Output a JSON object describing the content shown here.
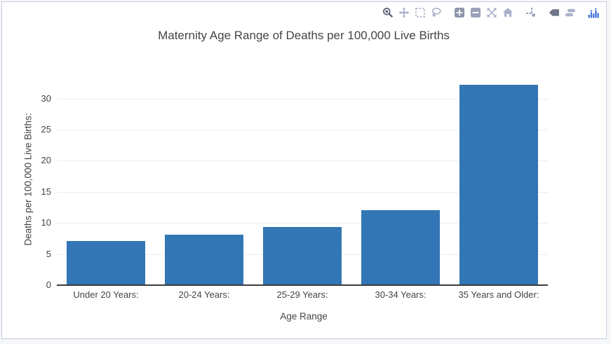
{
  "window": {
    "page_background": "#f6f7f8",
    "card_border_color": "#c6cbdd",
    "card_background": "#ffffff"
  },
  "modebar": {
    "icons": [
      {
        "id": "zoom",
        "state": "active"
      },
      {
        "id": "pan",
        "state": "inactive"
      },
      {
        "id": "box-select",
        "state": "inactive"
      },
      {
        "id": "lasso-select",
        "state": "inactive"
      },
      {
        "id": "zoom-in",
        "state": "medium"
      },
      {
        "id": "zoom-out",
        "state": "medium"
      },
      {
        "id": "autoscale",
        "state": "inactive"
      },
      {
        "id": "reset-axes",
        "state": "inactive"
      },
      {
        "id": "toggle-spikelines",
        "state": "medium"
      },
      {
        "id": "show-closest-data-on-hover",
        "state": "active"
      },
      {
        "id": "compare-data-on-hover",
        "state": "inactive"
      },
      {
        "id": "plotly-logo",
        "state": "logo"
      }
    ],
    "colors": {
      "active": "#5d6576",
      "inactive": "#aab1c8",
      "medium": "#8f96ad",
      "logo_blue": "#4272d7"
    }
  },
  "chart_data": {
    "type": "bar",
    "title": "Maternity Age Range of Deaths per 100,000 Live Births",
    "xlabel": "Age Range",
    "ylabel": "Deaths per 100,000 Live Births:",
    "categories": [
      "Under 20 Years:",
      "20-24 Years:",
      "25-29 Years:",
      "30-34 Years:",
      "35 Years and Older:"
    ],
    "values": [
      7.1,
      8.1,
      9.4,
      12.1,
      32.2
    ],
    "yticks": [
      0,
      5,
      10,
      15,
      20,
      25,
      30
    ],
    "ylim": [
      0,
      33.9
    ],
    "grid": true,
    "legend": "none",
    "bar_color": "#3276b5",
    "axis_text_color": "#444444",
    "gridline_color": "#ebedef",
    "axis_line_color": "#3c3c3c"
  }
}
